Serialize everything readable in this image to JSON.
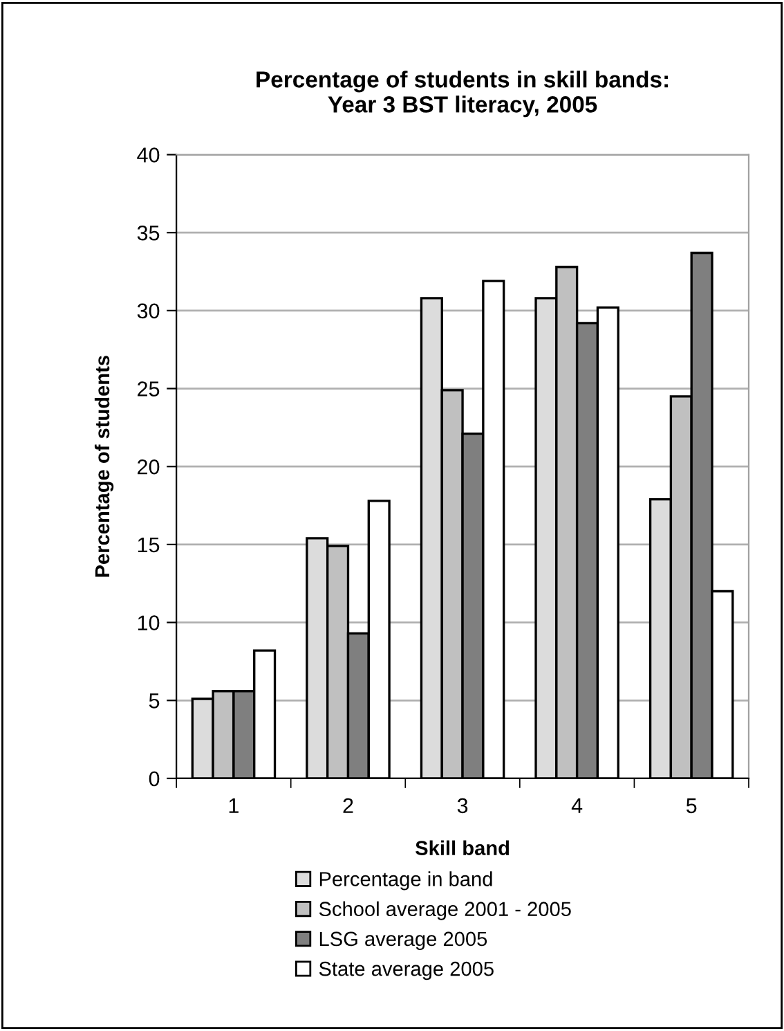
{
  "chart_data": {
    "type": "bar",
    "title": "Percentage of students in skill bands:\nYear 3 BST literacy, 2005",
    "xlabel": "Skill band",
    "ylabel": "Percentage of students",
    "categories": [
      "1",
      "2",
      "3",
      "4",
      "5"
    ],
    "series": [
      {
        "name": "Percentage in band",
        "color": "#dcdcdc",
        "values": [
          5.1,
          15.4,
          30.8,
          30.8,
          17.9
        ]
      },
      {
        "name": "School average 2001 - 2005",
        "color": "#c0c0c0",
        "values": [
          5.6,
          14.9,
          24.9,
          32.8,
          24.5
        ]
      },
      {
        "name": "LSG average 2005",
        "color": "#7f7f7f",
        "values": [
          5.6,
          9.3,
          22.1,
          29.2,
          33.7
        ]
      },
      {
        "name": "State average 2005",
        "color": "#ffffff",
        "values": [
          8.2,
          17.8,
          31.9,
          30.2,
          12.0
        ]
      }
    ],
    "ylim": [
      0,
      40
    ],
    "yticks": [
      0,
      5,
      10,
      15,
      20,
      25,
      30,
      35,
      40
    ],
    "grid": "y",
    "legend": "bottom"
  }
}
